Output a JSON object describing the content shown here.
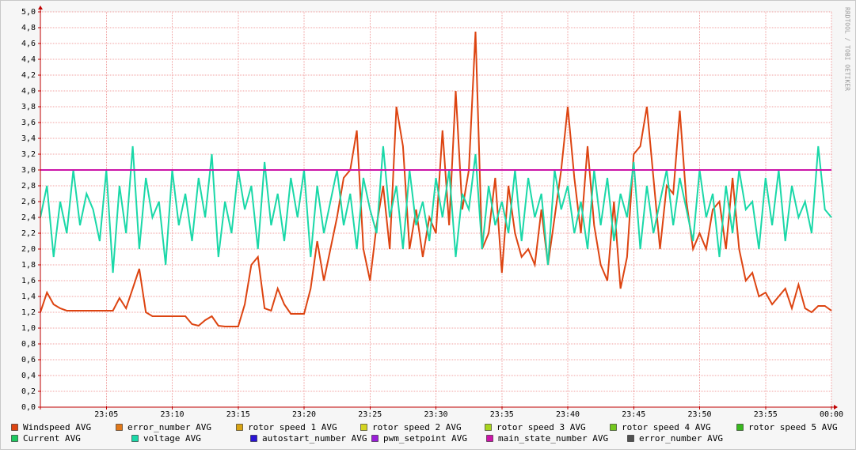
{
  "chart_data": {
    "type": "line",
    "watermark": "RRDTOOL / TOBI OETIKER",
    "xlim": [
      0,
      60
    ],
    "xticks": [
      {
        "value": 5,
        "label": "23:05"
      },
      {
        "value": 10,
        "label": "23:10"
      },
      {
        "value": 15,
        "label": "23:15"
      },
      {
        "value": 20,
        "label": "23:20"
      },
      {
        "value": 25,
        "label": "23:25"
      },
      {
        "value": 30,
        "label": "23:30"
      },
      {
        "value": 35,
        "label": "23:35"
      },
      {
        "value": 40,
        "label": "23:40"
      },
      {
        "value": 45,
        "label": "23:45"
      },
      {
        "value": 50,
        "label": "23:50"
      },
      {
        "value": 55,
        "label": "23:55"
      },
      {
        "value": 60,
        "label": "00:00"
      }
    ],
    "ylim": [
      0,
      5
    ],
    "yticks": [
      {
        "value": 0,
        "label": "0,0"
      },
      {
        "value": 0.2,
        "label": "0,2"
      },
      {
        "value": 0.4,
        "label": "0,4"
      },
      {
        "value": 0.6,
        "label": "0,6"
      },
      {
        "value": 0.8,
        "label": "0,8"
      },
      {
        "value": 1,
        "label": "1,0"
      },
      {
        "value": 1.2,
        "label": "1,2"
      },
      {
        "value": 1.4,
        "label": "1,4"
      },
      {
        "value": 1.6,
        "label": "1,6"
      },
      {
        "value": 1.8,
        "label": "1,8"
      },
      {
        "value": 2,
        "label": "2,0"
      },
      {
        "value": 2.2,
        "label": "2,2"
      },
      {
        "value": 2.4,
        "label": "2,4"
      },
      {
        "value": 2.6,
        "label": "2,6"
      },
      {
        "value": 2.8,
        "label": "2,8"
      },
      {
        "value": 3,
        "label": "3,0"
      },
      {
        "value": 3.2,
        "label": "3,2"
      },
      {
        "value": 3.4,
        "label": "3,4"
      },
      {
        "value": 3.6,
        "label": "3,6"
      },
      {
        "value": 3.8,
        "label": "3,8"
      },
      {
        "value": 4,
        "label": "4,0"
      },
      {
        "value": 4.2,
        "label": "4,2"
      },
      {
        "value": 4.4,
        "label": "4,4"
      },
      {
        "value": 4.6,
        "label": "4,6"
      },
      {
        "value": 4.8,
        "label": "4,8"
      },
      {
        "value": 5,
        "label": "5,0"
      }
    ],
    "grid": true,
    "x": [
      0,
      0.5,
      1,
      1.5,
      2,
      2.5,
      3,
      3.5,
      4,
      4.5,
      5,
      5.5,
      6,
      6.5,
      7,
      7.5,
      8,
      8.5,
      9,
      9.5,
      10,
      10.5,
      11,
      11.5,
      12,
      12.5,
      13,
      13.5,
      14,
      14.5,
      15,
      15.5,
      16,
      16.5,
      17,
      17.5,
      18,
      18.5,
      19,
      19.5,
      20,
      20.5,
      21,
      21.5,
      22,
      22.5,
      23,
      23.5,
      24,
      24.5,
      25,
      25.5,
      26,
      26.5,
      27,
      27.5,
      28,
      28.5,
      29,
      29.5,
      30,
      30.5,
      31,
      31.5,
      32,
      32.5,
      33,
      33.5,
      34,
      34.5,
      35,
      35.5,
      36,
      36.5,
      37,
      37.5,
      38,
      38.5,
      39,
      39.5,
      40,
      40.5,
      41,
      41.5,
      42,
      42.5,
      43,
      43.5,
      44,
      44.5,
      45,
      45.5,
      46,
      46.5,
      47,
      47.5,
      48,
      48.5,
      49,
      49.5,
      50,
      50.5,
      51,
      51.5,
      52,
      52.5,
      53,
      53.5,
      54,
      54.5,
      55,
      55.5,
      56,
      56.5,
      57,
      57.5,
      58,
      58.5,
      59,
      59.5,
      60
    ],
    "series": [
      {
        "name": "Windspeed AVG",
        "color": "#dd4411",
        "values": [
          1.2,
          1.45,
          1.3,
          1.25,
          1.22,
          1.22,
          1.22,
          1.22,
          1.22,
          1.22,
          1.22,
          1.22,
          1.38,
          1.25,
          1.5,
          1.75,
          1.2,
          1.15,
          1.15,
          1.15,
          1.15,
          1.15,
          1.15,
          1.05,
          1.03,
          1.1,
          1.15,
          1.03,
          1.02,
          1.02,
          1.02,
          1.3,
          1.8,
          1.9,
          1.25,
          1.22,
          1.5,
          1.3,
          1.18,
          1.18,
          1.18,
          1.5,
          2.1,
          1.6,
          2.0,
          2.4,
          2.9,
          3.0,
          3.5,
          2.0,
          1.6,
          2.3,
          2.8,
          2.0,
          3.8,
          3.3,
          2.0,
          2.5,
          1.9,
          2.4,
          2.2,
          3.5,
          2.3,
          4.0,
          2.5,
          3.0,
          4.75,
          2.0,
          2.2,
          2.9,
          1.7,
          2.8,
          2.2,
          1.9,
          2.0,
          1.8,
          2.5,
          1.8,
          2.4,
          3.0,
          3.8,
          2.9,
          2.2,
          3.3,
          2.3,
          1.8,
          1.6,
          2.6,
          1.5,
          1.9,
          3.2,
          3.3,
          3.8,
          2.9,
          2.0,
          2.8,
          2.7,
          3.75,
          2.6,
          2.0,
          2.2,
          2.0,
          2.5,
          2.6,
          2.0,
          2.9,
          2.0,
          1.6,
          1.7,
          1.4,
          1.45,
          1.3,
          1.4,
          1.5,
          1.25,
          1.55,
          1.25,
          1.2,
          1.28,
          1.28,
          1.22
        ]
      },
      {
        "name": "error_number AVG",
        "color": "#e0781a"
      },
      {
        "name": "rotor speed 1 AVG",
        "color": "#d8a414"
      },
      {
        "name": "rotor speed 2 AVG",
        "color": "#d4d420"
      },
      {
        "name": "rotor speed 3 AVG",
        "color": "#a8d41e"
      },
      {
        "name": "rotor speed 4 AVG",
        "color": "#74c81e"
      },
      {
        "name": "rotor speed 5 AVG",
        "color": "#38b81e"
      },
      {
        "name": "Current AVG",
        "color": "#1ec860"
      },
      {
        "name": "voltage AVG",
        "color": "#1ad8a8",
        "values": [
          2.4,
          2.8,
          1.9,
          2.6,
          2.2,
          3.0,
          2.3,
          2.7,
          2.5,
          2.1,
          3.0,
          1.7,
          2.8,
          2.2,
          3.3,
          2.0,
          2.9,
          2.4,
          2.6,
          1.8,
          3.0,
          2.3,
          2.7,
          2.1,
          2.9,
          2.4,
          3.2,
          1.9,
          2.6,
          2.2,
          3.0,
          2.5,
          2.8,
          2.0,
          3.1,
          2.3,
          2.7,
          2.1,
          2.9,
          2.4,
          3.0,
          1.9,
          2.8,
          2.2,
          2.6,
          3.0,
          2.3,
          2.7,
          2.0,
          2.9,
          2.5,
          2.2,
          3.3,
          2.4,
          2.8,
          2.0,
          3.0,
          2.3,
          2.6,
          2.1,
          2.9,
          2.4,
          3.0,
          1.9,
          2.7,
          2.5,
          3.2,
          2.0,
          2.8,
          2.3,
          2.6,
          2.2,
          3.0,
          2.1,
          2.9,
          2.4,
          2.7,
          1.8,
          3.0,
          2.5,
          2.8,
          2.2,
          2.6,
          2.0,
          3.0,
          2.3,
          2.9,
          2.1,
          2.7,
          2.4,
          3.1,
          2.0,
          2.8,
          2.2,
          2.6,
          3.0,
          2.3,
          2.9,
          2.5,
          2.1,
          3.0,
          2.4,
          2.7,
          1.9,
          2.8,
          2.2,
          3.0,
          2.5,
          2.6,
          2.0,
          2.9,
          2.3,
          3.0,
          2.1,
          2.8,
          2.4,
          2.6,
          2.2,
          3.3,
          2.5,
          2.4
        ]
      },
      {
        "name": "autostart_number AVG",
        "color": "#2a14d4"
      },
      {
        "name": "pwm_setpoint AVG",
        "color": "#9a1ed8"
      },
      {
        "name": "main_state_number AVG",
        "color": "#cc14a8",
        "x": [
          0,
          60
        ],
        "values": [
          3,
          3
        ]
      },
      {
        "name": "error_number AVG",
        "color": "#505050"
      }
    ]
  }
}
